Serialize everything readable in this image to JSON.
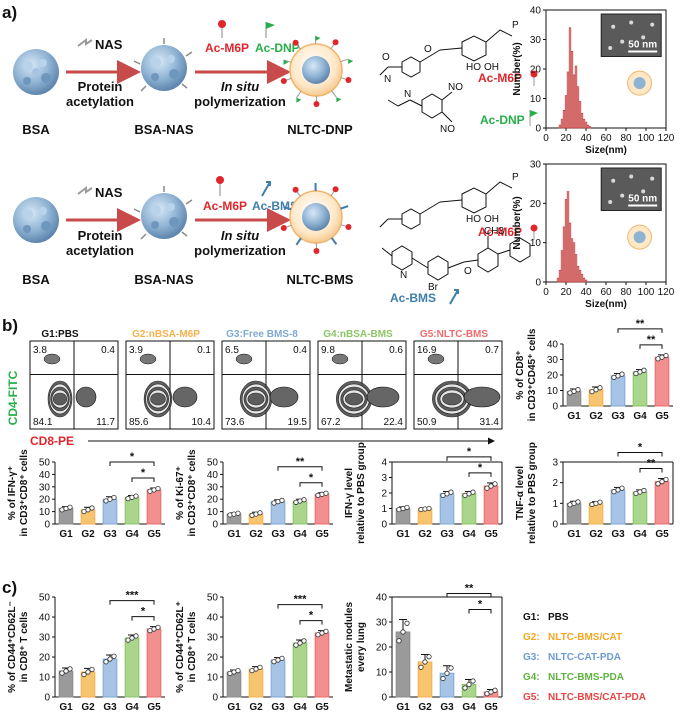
{
  "panel_labels": {
    "a": "a)",
    "b": "b)",
    "c": "c)"
  },
  "scheme_top": {
    "bsa": "BSA",
    "nas": "NAS",
    "step1_line1": "Protein",
    "step1_line2": "acetylation",
    "intermediate": "BSA-NAS",
    "reagent1": "Ac-M6P",
    "reagent2": "Ac-DNP",
    "step2_line1": "In situ",
    "step2_line2": "polymerization",
    "product": "NLTC-DNP",
    "struct1": "Ac-M6P",
    "struct2": "Ac-DNP"
  },
  "scheme_bottom": {
    "bsa": "BSA",
    "nas": "NAS",
    "step1_line1": "Protein",
    "step1_line2": "acetylation",
    "intermediate": "BSA-NAS",
    "reagent1": "Ac-M6P",
    "reagent2": "Ac-BMS",
    "step2_line1": "In situ",
    "step2_line2": "polymerization",
    "product": "NLTC-BMS",
    "struct1": "Ac-M6P",
    "struct2": "Ac-BMS",
    "methyl": "CH3",
    "bromo": "Br"
  },
  "colors": {
    "g1": "#8c8c8c",
    "g2": "#f5b14c",
    "g3": "#7fa9d6",
    "g4": "#8cc466",
    "g5": "#ef6b6b",
    "m6p": "#e0262b",
    "dnp": "#27ae4a",
    "bms": "#3f7faa",
    "hist": "#e06060"
  },
  "flow": {
    "groups": [
      {
        "label": "G1:PBS",
        "q": [
          "3.8",
          "0.4",
          "84.1",
          "11.7"
        ]
      },
      {
        "label": "G2:nBSA-M6P",
        "q": [
          "3.9",
          "0.1",
          "85.6",
          "10.4"
        ]
      },
      {
        "label": "G3:Free BMS-8",
        "q": [
          "6.5",
          "0.4",
          "73.6",
          "19.5"
        ]
      },
      {
        "label": "G4:nBSA-BMS",
        "q": [
          "9.8",
          "0.6",
          "67.2",
          "22.4"
        ]
      },
      {
        "label": "G5:NLTC-BMS",
        "q": [
          "16.9",
          "0.7",
          "50.9",
          "31.4"
        ]
      }
    ],
    "ylabel": "CD4-FITC",
    "xlabel": "CD8-PE"
  },
  "legend": {
    "items": [
      {
        "key": "G1:",
        "name": "PBS",
        "color": "#111111"
      },
      {
        "key": "G2:",
        "name": "NLTC-BMS/CAT",
        "color": "#f5a623"
      },
      {
        "key": "G3:",
        "name": "NLTC-CAT-PDA",
        "color": "#6c9bd2"
      },
      {
        "key": "G4:",
        "name": "NLTC-BMS-PDA",
        "color": "#5fb33f"
      },
      {
        "key": "G5:",
        "name": "NLTC-BMS/CAT-PDA",
        "color": "#e64545"
      }
    ]
  },
  "chart_data": [
    {
      "id": "h1",
      "type": "bar",
      "title": "",
      "xlabel": "Size(nm)",
      "ylabel": "Number(%)",
      "xlim": [
        0,
        120
      ],
      "ylim": [
        0,
        40
      ],
      "xticks": [
        0,
        20,
        40,
        60,
        80,
        100,
        120
      ],
      "yticks": [
        0,
        10,
        20,
        30,
        40
      ],
      "scale_bar": "50 nm",
      "x": [
        14,
        16,
        18,
        20,
        22,
        24,
        26,
        28,
        30,
        32,
        34,
        36,
        38,
        40,
        42,
        44
      ],
      "values": [
        1,
        3,
        6,
        11,
        19,
        34,
        26,
        18,
        21,
        14,
        9,
        5,
        3,
        2,
        1,
        0.5
      ]
    },
    {
      "id": "h2",
      "type": "bar",
      "title": "",
      "xlabel": "Size(nm)",
      "ylabel": "Number(%)",
      "xlim": [
        0,
        120
      ],
      "ylim": [
        0,
        30
      ],
      "xticks": [
        0,
        20,
        40,
        60,
        80,
        100,
        120
      ],
      "yticks": [
        0,
        10,
        20,
        30
      ],
      "scale_bar": "50 nm",
      "x": [
        12,
        14,
        16,
        18,
        20,
        22,
        24,
        26,
        28,
        30,
        32,
        34,
        36,
        38,
        40
      ],
      "values": [
        1,
        3,
        8,
        14,
        21,
        23,
        15,
        11,
        10,
        7,
        4,
        3,
        2,
        1,
        0.5
      ]
    },
    {
      "id": "b1",
      "type": "bar",
      "ylabel": "% of CD8⁺ in CD3⁺CD45⁺ cells",
      "categories": [
        "G1",
        "G2",
        "G3",
        "G4",
        "G5"
      ],
      "values": [
        9.5,
        10.5,
        19.5,
        22,
        31.5
      ],
      "errors": [
        1.5,
        1.8,
        1.5,
        1.5,
        1.5
      ],
      "ylim": [
        0,
        40
      ],
      "yticks": [
        0,
        10,
        20,
        30,
        40
      ],
      "sig": [
        {
          "from": 3,
          "to": 4,
          "text": "**"
        },
        {
          "from": 2,
          "to": 4,
          "text": "**"
        }
      ]
    },
    {
      "id": "b2",
      "type": "bar",
      "ylabel": "% of IFN-γ⁺ in CD3⁺CD8⁺ cells",
      "categories": [
        "G1",
        "G2",
        "G3",
        "G4",
        "G5"
      ],
      "values": [
        12.5,
        11.5,
        20,
        21.5,
        27.5
      ],
      "errors": [
        1.5,
        2,
        2,
        1.5,
        1.5
      ],
      "ylim": [
        0,
        50
      ],
      "yticks": [
        0,
        10,
        20,
        30,
        40,
        50
      ],
      "sig": [
        {
          "from": 3,
          "to": 4,
          "text": "*"
        },
        {
          "from": 2,
          "to": 4,
          "text": "*"
        }
      ]
    },
    {
      "id": "b3",
      "type": "bar",
      "ylabel": "% of Ki-67⁺ in CD3⁺CD8⁺ cells",
      "categories": [
        "G1",
        "G2",
        "G3",
        "G4",
        "G5"
      ],
      "values": [
        8,
        8,
        18,
        18.5,
        24
      ],
      "errors": [
        1,
        1.5,
        1.5,
        1.5,
        1.2
      ],
      "ylim": [
        0,
        50
      ],
      "yticks": [
        0,
        10,
        20,
        30,
        40,
        50
      ],
      "sig": [
        {
          "from": 3,
          "to": 4,
          "text": "*"
        },
        {
          "from": 2,
          "to": 4,
          "text": "**"
        }
      ]
    },
    {
      "id": "b4",
      "type": "bar",
      "ylabel": "IFN-γ level relative to PBS group",
      "categories": [
        "G1",
        "G2",
        "G3",
        "G4",
        "G5"
      ],
      "values": [
        1,
        0.97,
        1.95,
        1.95,
        2.45
      ],
      "errors": [
        0.1,
        0.05,
        0.15,
        0.15,
        0.2
      ],
      "ylim": [
        0,
        4
      ],
      "yticks": [
        0,
        1,
        2,
        3,
        4
      ],
      "sig": [
        {
          "from": 3,
          "to": 4,
          "text": "*"
        },
        {
          "from": 2,
          "to": 4,
          "text": "*"
        }
      ]
    },
    {
      "id": "b5",
      "type": "bar",
      "ylabel": "TNF-α level relative to PBS group",
      "categories": [
        "G1",
        "G2",
        "G3",
        "G4",
        "G5"
      ],
      "values": [
        1,
        1,
        1.65,
        1.55,
        2.05
      ],
      "errors": [
        0.1,
        0.08,
        0.12,
        0.1,
        0.15
      ],
      "ylim": [
        0,
        3
      ],
      "yticks": [
        0,
        1,
        2,
        3
      ],
      "sig": [
        {
          "from": 3,
          "to": 4,
          "text": "**"
        },
        {
          "from": 2,
          "to": 4,
          "text": "*"
        }
      ]
    },
    {
      "id": "c1",
      "type": "bar",
      "ylabel": "% of CD44⁺CD62L⁻ in CD8⁺ T cells",
      "categories": [
        "G1",
        "G2",
        "G3",
        "G4",
        "G5"
      ],
      "values": [
        13,
        12.5,
        19,
        29.5,
        34
      ],
      "errors": [
        1.5,
        1.8,
        2,
        1.5,
        1.2
      ],
      "ylim": [
        0,
        50
      ],
      "yticks": [
        0,
        10,
        20,
        30,
        40,
        50
      ],
      "sig": [
        {
          "from": 3,
          "to": 4,
          "text": "*"
        },
        {
          "from": 2,
          "to": 4,
          "text": "***"
        }
      ]
    },
    {
      "id": "c2",
      "type": "bar",
      "ylabel": "% of CD44⁺CD62L⁺ in CD8⁺ T cells",
      "categories": [
        "G1",
        "G2",
        "G3",
        "G4",
        "G5"
      ],
      "values": [
        12.5,
        14,
        18.5,
        27,
        32
      ],
      "errors": [
        1,
        1.2,
        1.2,
        1.5,
        1.2
      ],
      "ylim": [
        0,
        50
      ],
      "yticks": [
        0,
        10,
        20,
        30,
        40,
        50
      ],
      "sig": [
        {
          "from": 3,
          "to": 4,
          "text": "*"
        },
        {
          "from": 2,
          "to": 4,
          "text": "***"
        }
      ]
    },
    {
      "id": "c3",
      "type": "bar",
      "ylabel": "Metastatic nodules every lung",
      "categories": [
        "G1",
        "G2",
        "G3",
        "G4",
        "G5"
      ],
      "values": [
        26,
        14,
        9.5,
        5,
        2
      ],
      "errors": [
        5,
        3,
        3,
        2,
        1
      ],
      "ylim": [
        0,
        40
      ],
      "yticks": [
        0,
        10,
        20,
        30,
        40
      ],
      "sig": [
        {
          "from": 3,
          "to": 4,
          "text": "*"
        },
        {
          "from": 2,
          "to": 4,
          "text": "**"
        }
      ]
    }
  ]
}
